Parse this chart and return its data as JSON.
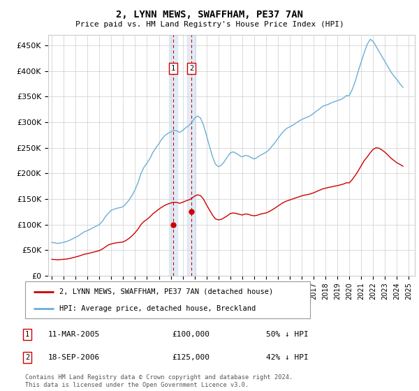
{
  "title": "2, LYNN MEWS, SWAFFHAM, PE37 7AN",
  "subtitle": "Price paid vs. HM Land Registry's House Price Index (HPI)",
  "ylabel_ticks": [
    0,
    50000,
    100000,
    150000,
    200000,
    250000,
    300000,
    350000,
    400000,
    450000
  ],
  "ylabel_labels": [
    "£0",
    "£50K",
    "£100K",
    "£150K",
    "£200K",
    "£250K",
    "£300K",
    "£350K",
    "£400K",
    "£450K"
  ],
  "ylim": [
    0,
    470000
  ],
  "xlim_start": 1994.7,
  "xlim_end": 2025.5,
  "sale1_date": 2005.19,
  "sale1_price": 100000,
  "sale1_label": "1",
  "sale1_text": "11-MAR-2005",
  "sale1_amount": "£100,000",
  "sale1_pct": "50% ↓ HPI",
  "sale2_date": 2006.72,
  "sale2_price": 125000,
  "sale2_label": "2",
  "sale2_text": "18-SEP-2006",
  "sale2_amount": "£125,000",
  "sale2_pct": "42% ↓ HPI",
  "hpi_color": "#6baed6",
  "price_color": "#cc0000",
  "vline_color": "#cc0000",
  "shade_color": "#c6dbef",
  "legend_prop_label": "2, LYNN MEWS, SWAFFHAM, PE37 7AN (detached house)",
  "legend_hpi_label": "HPI: Average price, detached house, Breckland",
  "footer": "Contains HM Land Registry data © Crown copyright and database right 2024.\nThis data is licensed under the Open Government Licence v3.0.",
  "hpi_data_x": [
    1995.0,
    1995.25,
    1995.5,
    1995.75,
    1996.0,
    1996.25,
    1996.5,
    1996.75,
    1997.0,
    1997.25,
    1997.5,
    1997.75,
    1998.0,
    1998.25,
    1998.5,
    1998.75,
    1999.0,
    1999.25,
    1999.5,
    1999.75,
    2000.0,
    2000.25,
    2000.5,
    2000.75,
    2001.0,
    2001.25,
    2001.5,
    2001.75,
    2002.0,
    2002.25,
    2002.5,
    2002.75,
    2003.0,
    2003.25,
    2003.5,
    2003.75,
    2004.0,
    2004.25,
    2004.5,
    2004.75,
    2005.0,
    2005.25,
    2005.5,
    2005.75,
    2006.0,
    2006.25,
    2006.5,
    2006.75,
    2007.0,
    2007.25,
    2007.5,
    2007.75,
    2008.0,
    2008.25,
    2008.5,
    2008.75,
    2009.0,
    2009.25,
    2009.5,
    2009.75,
    2010.0,
    2010.25,
    2010.5,
    2010.75,
    2011.0,
    2011.25,
    2011.5,
    2011.75,
    2012.0,
    2012.25,
    2012.5,
    2012.75,
    2013.0,
    2013.25,
    2013.5,
    2013.75,
    2014.0,
    2014.25,
    2014.5,
    2014.75,
    2015.0,
    2015.25,
    2015.5,
    2015.75,
    2016.0,
    2016.25,
    2016.5,
    2016.75,
    2017.0,
    2017.25,
    2017.5,
    2017.75,
    2018.0,
    2018.25,
    2018.5,
    2018.75,
    2019.0,
    2019.25,
    2019.5,
    2019.75,
    2020.0,
    2020.25,
    2020.5,
    2020.75,
    2021.0,
    2021.25,
    2021.5,
    2021.75,
    2022.0,
    2022.25,
    2022.5,
    2022.75,
    2023.0,
    2023.25,
    2023.5,
    2023.75,
    2024.0,
    2024.25,
    2024.5
  ],
  "hpi_data_y": [
    65000,
    64000,
    63000,
    64000,
    65000,
    67000,
    69000,
    72000,
    75000,
    78000,
    82000,
    86000,
    88000,
    91000,
    94000,
    97000,
    100000,
    106000,
    115000,
    122000,
    128000,
    130000,
    132000,
    133000,
    135000,
    141000,
    148000,
    157000,
    168000,
    182000,
    200000,
    212000,
    220000,
    229000,
    241000,
    250000,
    258000,
    267000,
    274000,
    278000,
    281000,
    284000,
    283000,
    280000,
    284000,
    289000,
    293000,
    299000,
    308000,
    312000,
    308000,
    294000,
    274000,
    253000,
    233000,
    218000,
    213000,
    216000,
    223000,
    232000,
    240000,
    242000,
    239000,
    235000,
    232000,
    235000,
    234000,
    231000,
    228000,
    231000,
    235000,
    238000,
    241000,
    246000,
    253000,
    260000,
    268000,
    276000,
    283000,
    288000,
    291000,
    294000,
    298000,
    302000,
    305000,
    308000,
    310000,
    313000,
    317000,
    322000,
    326000,
    331000,
    333000,
    335000,
    338000,
    340000,
    342000,
    344000,
    347000,
    352000,
    352000,
    364000,
    380000,
    400000,
    418000,
    436000,
    452000,
    462000,
    458000,
    448000,
    438000,
    428000,
    418000,
    408000,
    398000,
    390000,
    383000,
    375000,
    368000
  ],
  "prop_data_x": [
    1995.0,
    1995.25,
    1995.5,
    1995.75,
    1996.0,
    1996.25,
    1996.5,
    1996.75,
    1997.0,
    1997.25,
    1997.5,
    1997.75,
    1998.0,
    1998.25,
    1998.5,
    1998.75,
    1999.0,
    1999.25,
    1999.5,
    1999.75,
    2000.0,
    2000.25,
    2000.5,
    2000.75,
    2001.0,
    2001.25,
    2001.5,
    2001.75,
    2002.0,
    2002.25,
    2002.5,
    2002.75,
    2003.0,
    2003.25,
    2003.5,
    2003.75,
    2004.0,
    2004.25,
    2004.5,
    2004.75,
    2005.0,
    2005.25,
    2005.5,
    2005.75,
    2006.0,
    2006.25,
    2006.5,
    2006.75,
    2007.0,
    2007.25,
    2007.5,
    2007.75,
    2008.0,
    2008.25,
    2008.5,
    2008.75,
    2009.0,
    2009.25,
    2009.5,
    2009.75,
    2010.0,
    2010.25,
    2010.5,
    2010.75,
    2011.0,
    2011.25,
    2011.5,
    2011.75,
    2012.0,
    2012.25,
    2012.5,
    2012.75,
    2013.0,
    2013.25,
    2013.5,
    2013.75,
    2014.0,
    2014.25,
    2014.5,
    2014.75,
    2015.0,
    2015.25,
    2015.5,
    2015.75,
    2016.0,
    2016.25,
    2016.5,
    2016.75,
    2017.0,
    2017.25,
    2017.5,
    2017.75,
    2018.0,
    2018.25,
    2018.5,
    2018.75,
    2019.0,
    2019.25,
    2019.5,
    2019.75,
    2020.0,
    2020.25,
    2020.5,
    2020.75,
    2021.0,
    2021.25,
    2021.5,
    2021.75,
    2022.0,
    2022.25,
    2022.5,
    2022.75,
    2023.0,
    2023.25,
    2023.5,
    2023.75,
    2024.0,
    2024.25,
    2024.5
  ],
  "prop_data_y": [
    32000,
    31500,
    31000,
    31500,
    32000,
    32500,
    33500,
    35000,
    36500,
    38000,
    40000,
    42000,
    43000,
    44500,
    46000,
    47500,
    49000,
    52000,
    56000,
    60000,
    62000,
    63500,
    64500,
    65000,
    66000,
    69000,
    73000,
    78000,
    84000,
    91000,
    100000,
    106000,
    110000,
    115000,
    121000,
    125500,
    130000,
    134000,
    137500,
    140000,
    142000,
    143500,
    143000,
    141500,
    143500,
    146000,
    148000,
    151000,
    155500,
    158000,
    156500,
    149500,
    138500,
    128500,
    118500,
    111000,
    109000,
    110000,
    113500,
    117000,
    121500,
    122500,
    121500,
    120000,
    118500,
    120500,
    120000,
    118000,
    117000,
    118000,
    120000,
    121500,
    122500,
    125000,
    128500,
    132000,
    136000,
    140000,
    143500,
    146000,
    148000,
    150000,
    152000,
    154000,
    156000,
    157500,
    158500,
    160000,
    162000,
    164500,
    167000,
    169500,
    171000,
    172500,
    173500,
    175000,
    176000,
    177500,
    179000,
    181500,
    181500,
    188000,
    196000,
    205000,
    215000,
    225000,
    232000,
    240000,
    247000,
    250000,
    249000,
    245500,
    241000,
    235500,
    229500,
    225000,
    220500,
    217500,
    214000
  ]
}
